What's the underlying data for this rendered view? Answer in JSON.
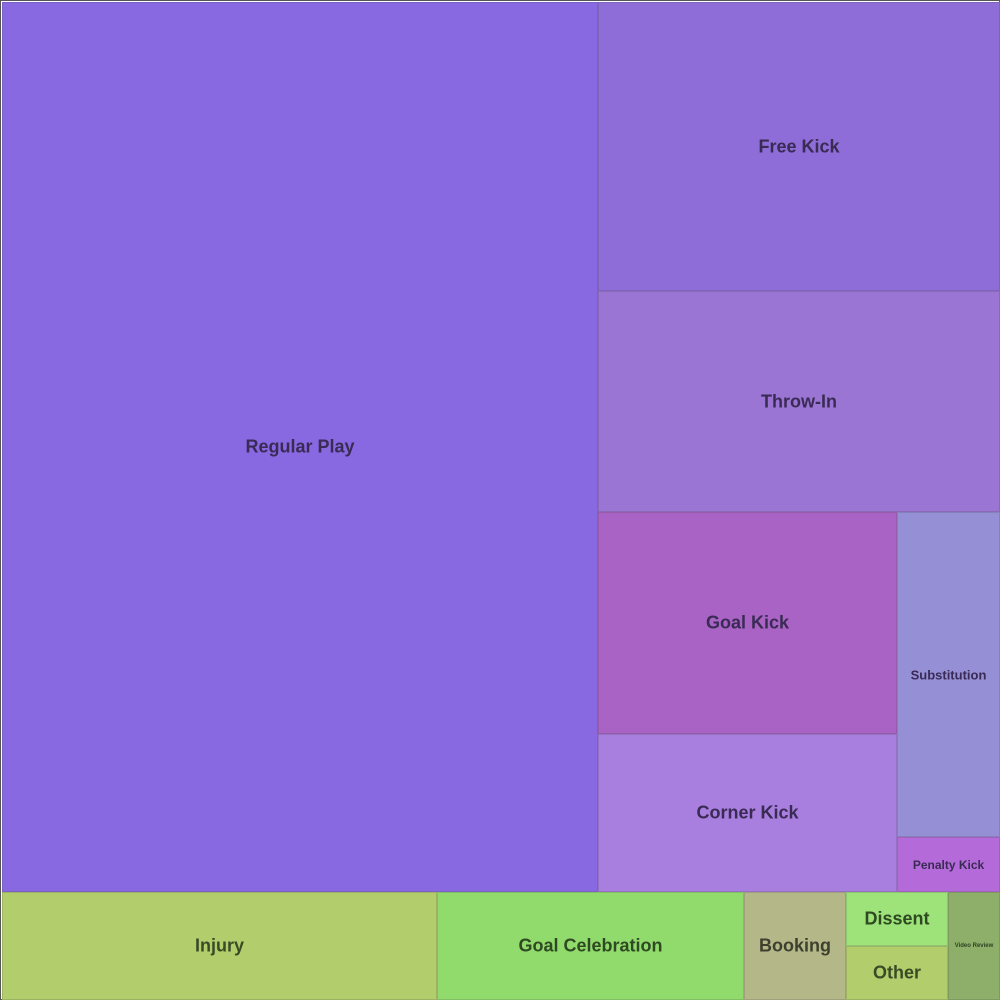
{
  "chart_data": {
    "type": "treemap",
    "title": "",
    "categories": [
      "Regular Play",
      "Free Kick",
      "Throw-In",
      "Goal Kick",
      "Corner Kick",
      "Substitution",
      "Penalty Kick",
      "Injury",
      "Goal Celebration",
      "Booking",
      "Dissent",
      "Other",
      "Video Review"
    ],
    "values": [
      53.2,
      11.6,
      8.8,
      6.6,
      4.7,
      3.2,
      0.5,
      4.7,
      3.3,
      1.1,
      0.55,
      0.55,
      0.5
    ],
    "colors": [
      "#8869e2",
      "#8e6dd8",
      "#9b75d4",
      "#a963c4",
      "#a87ede",
      "#958fd6",
      "#b46ad8",
      "#b2cd6c",
      "#91db6d",
      "#b4b889",
      "#9ee27a",
      "#b2cd6c",
      "#8daf6a"
    ],
    "label_colors": [
      "#3a2b55",
      "#3a2b55",
      "#3a2b55",
      "#3a2b55",
      "#3a2b55",
      "#3a2b55",
      "#3a2b55",
      "#3a4a26",
      "#2f4a22",
      "#3e3f2e",
      "#2f4a22",
      "#3a4a26",
      "#2f4222"
    ]
  }
}
